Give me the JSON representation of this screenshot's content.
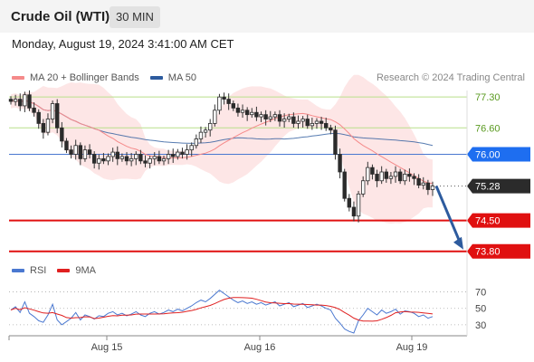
{
  "header": {
    "title": "Crude Oil (WTI)",
    "timeframe": "30 MIN"
  },
  "datetime": "Monday, August 19, 2024 3:41:00 AM CET",
  "legend": {
    "ma20_label": "MA 20 + Bollinger Bands",
    "ma20_color": "#f58a8a",
    "ma50_label": "MA 50",
    "ma50_color": "#2d5b9e"
  },
  "credit": "Research © 2024 Trading Central",
  "rsi_legend": {
    "rsi_label": "RSI",
    "rsi_color": "#4a78d0",
    "ma_label": "9MA",
    "ma_color": "#e02020"
  },
  "chart_data": {
    "type": "candlestick",
    "x_labels": [
      "Aug 15",
      "Aug 16",
      "Aug 19"
    ],
    "price_range": [
      73.65,
      77.55
    ],
    "levels": [
      {
        "label": "77.30",
        "value": 77.3,
        "kind": "resistance-light"
      },
      {
        "label": "76.60",
        "value": 76.6,
        "kind": "resistance-light"
      },
      {
        "label": "76.00",
        "value": 76.0,
        "kind": "pivot"
      },
      {
        "label": "75.28",
        "value": 75.28,
        "kind": "last-price"
      },
      {
        "label": "74.50",
        "value": 74.5,
        "kind": "support"
      },
      {
        "label": "73.80",
        "value": 73.8,
        "kind": "support"
      }
    ],
    "forecast": {
      "from": 75.28,
      "to": 73.8
    },
    "closes": [
      77.2,
      77.25,
      77.1,
      77.35,
      77.05,
      76.95,
      76.7,
      76.5,
      76.8,
      77.15,
      76.6,
      76.3,
      76.1,
      76.0,
      76.2,
      75.9,
      76.1,
      76.0,
      75.8,
      75.9,
      75.85,
      75.95,
      76.05,
      75.9,
      75.95,
      75.85,
      75.9,
      76.0,
      75.85,
      75.8,
      75.9,
      75.95,
      75.85,
      75.9,
      76.0,
      75.95,
      76.05,
      76.0,
      76.1,
      76.2,
      76.35,
      76.5,
      76.55,
      76.7,
      77.0,
      77.3,
      77.25,
      77.15,
      77.05,
      76.95,
      77.0,
      76.9,
      76.95,
      76.85,
      76.9,
      76.8,
      76.85,
      76.9,
      76.75,
      76.8,
      76.85,
      76.7,
      76.75,
      76.8,
      76.65,
      76.7,
      76.75,
      76.7,
      76.6,
      76.55,
      76.0,
      75.6,
      75.0,
      74.8,
      74.6,
      75.1,
      75.4,
      75.7,
      75.55,
      75.4,
      75.6,
      75.45,
      75.5,
      75.6,
      75.4,
      75.55,
      75.5,
      75.45,
      75.3,
      75.35,
      75.2,
      75.28
    ],
    "rsi_scale": [
      70,
      50,
      30
    ],
    "rsi": [
      48,
      52,
      45,
      58,
      44,
      40,
      35,
      33,
      42,
      55,
      36,
      30,
      34,
      38,
      45,
      36,
      42,
      40,
      37,
      41,
      40,
      44,
      46,
      42,
      44,
      41,
      43,
      46,
      42,
      40,
      44,
      46,
      43,
      45,
      48,
      46,
      49,
      47,
      50,
      53,
      57,
      60,
      58,
      62,
      67,
      72,
      68,
      64,
      60,
      57,
      59,
      56,
      58,
      55,
      57,
      54,
      56,
      58,
      53,
      55,
      57,
      52,
      54,
      56,
      51,
      53,
      55,
      53,
      50,
      48,
      38,
      32,
      25,
      22,
      20,
      35,
      42,
      50,
      46,
      42,
      48,
      44,
      46,
      49,
      43,
      47,
      46,
      44,
      40,
      42,
      38,
      40
    ]
  }
}
